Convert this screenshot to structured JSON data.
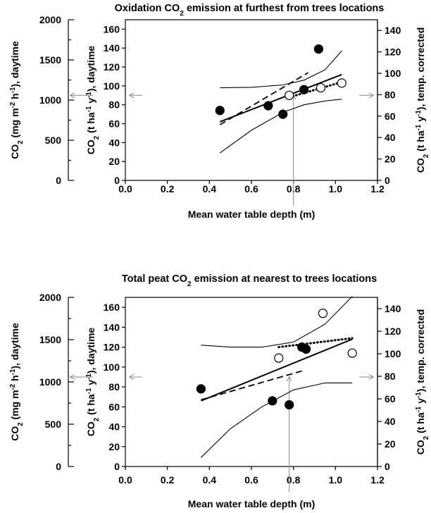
{
  "colors": {
    "marker_filled": "#000000",
    "marker_open": "#ffffff",
    "line": "#000000",
    "indicator": "#888888"
  },
  "chart_data": [
    {
      "type": "scatter",
      "title": "Oxidation CO₂ emission at furthest from trees locations",
      "xlabel": "Mean water table depth (m)",
      "ylabel": "CO₂ (t ha⁻¹ y⁻¹), daytime",
      "ylabel_left": "CO₂ (mg m⁻² h⁻¹), daytime",
      "ylabel_right": "CO₂ (t ha⁻¹ y⁻¹), temp. corrected",
      "xlim": [
        0,
        1.2
      ],
      "ylim": [
        0,
        170
      ],
      "ylim_left": [
        0,
        2000
      ],
      "ylim_right": [
        0,
        150
      ],
      "xticks": [
        "0.0",
        "0.2",
        "0.4",
        "0.6",
        "0.8",
        "1.0",
        "1.2"
      ],
      "yticks": [
        "0",
        "20",
        "40",
        "60",
        "80",
        "100",
        "120",
        "140",
        "160"
      ],
      "yticks_left": [
        "0",
        "500",
        "1000",
        "1500",
        "2000"
      ],
      "yticks_right": [
        "0",
        "20",
        "40",
        "60",
        "80",
        "100",
        "120",
        "140"
      ],
      "series": [
        {
          "marker": "filled-circle",
          "points": [
            [
              0.45,
              74
            ],
            [
              0.68,
              79
            ],
            [
              0.75,
              70
            ],
            [
              0.85,
              96
            ],
            [
              0.92,
              139
            ]
          ]
        },
        {
          "marker": "open-circle",
          "points": [
            [
              0.78,
              90
            ],
            [
              0.93,
              98
            ],
            [
              1.03,
              103
            ]
          ]
        }
      ],
      "lines": [
        {
          "style": "solid",
          "points": [
            [
              0.45,
              62
            ],
            [
              1.03,
              112
            ]
          ]
        },
        {
          "style": "dashed",
          "points": [
            [
              0.45,
              59
            ],
            [
              0.87,
              114
            ]
          ]
        },
        {
          "style": "dotted",
          "points": [
            [
              0.78,
              88
            ],
            [
              1.03,
              104
            ]
          ]
        },
        {
          "style": "thin",
          "points": [
            [
              0.45,
              98
            ],
            [
              0.6,
              98.5
            ],
            [
              0.75,
              101
            ],
            [
              0.85,
              106
            ],
            [
              0.95,
              117
            ],
            [
              1.03,
              137
            ]
          ]
        },
        {
          "style": "thin",
          "points": [
            [
              0.45,
              29
            ],
            [
              0.6,
              53
            ],
            [
              0.75,
              72
            ],
            [
              0.85,
              80
            ],
            [
              0.95,
              84
            ],
            [
              1.03,
              86
            ]
          ]
        }
      ],
      "indicator_x": 0.8
    },
    {
      "type": "scatter",
      "title": "Total peat CO₂ emission at nearest to trees locations",
      "xlabel": "Mean water table depth (m)",
      "ylabel": "CO₂ (t ha⁻¹ y⁻¹), daytime",
      "ylabel_left": "CO₂ (mg m⁻² h⁻¹), daytime",
      "ylabel_right": "CO₂ (t ha⁻¹ y⁻¹), temp. corrected",
      "xlim": [
        0,
        1.2
      ],
      "ylim": [
        0,
        170
      ],
      "ylim_left": [
        0,
        2000
      ],
      "ylim_right": [
        0,
        150
      ],
      "xticks": [
        "0.0",
        "0.2",
        "0.4",
        "0.6",
        "0.8",
        "1.0",
        "1.2"
      ],
      "yticks": [
        "0",
        "20",
        "40",
        "60",
        "80",
        "100",
        "120",
        "140",
        "160"
      ],
      "yticks_left": [
        "0",
        "500",
        "1000",
        "1500",
        "2000"
      ],
      "yticks_right": [
        "0",
        "20",
        "40",
        "60",
        "80",
        "100",
        "120",
        "140"
      ],
      "series": [
        {
          "marker": "filled-circle",
          "points": [
            [
              0.36,
              78
            ],
            [
              0.7,
              66
            ],
            [
              0.78,
              62
            ],
            [
              0.84,
              120
            ],
            [
              0.86,
              118
            ]
          ]
        },
        {
          "marker": "open-circle",
          "points": [
            [
              0.73,
              109
            ],
            [
              0.94,
              154
            ],
            [
              1.08,
              114
            ]
          ]
        }
      ],
      "lines": [
        {
          "style": "solid",
          "points": [
            [
              0.36,
              66
            ],
            [
              1.08,
              128
            ]
          ]
        },
        {
          "style": "dashed",
          "points": [
            [
              0.36,
              67
            ],
            [
              0.84,
              96
            ]
          ]
        },
        {
          "style": "dotted",
          "points": [
            [
              0.73,
              120
            ],
            [
              1.08,
              129
            ]
          ]
        },
        {
          "style": "thin",
          "points": [
            [
              0.36,
              122
            ],
            [
              0.5,
              120
            ],
            [
              0.65,
              120
            ],
            [
              0.8,
              125
            ],
            [
              0.95,
              143
            ],
            [
              1.08,
              171
            ]
          ]
        },
        {
          "style": "thin",
          "points": [
            [
              0.36,
              9
            ],
            [
              0.5,
              38
            ],
            [
              0.65,
              60
            ],
            [
              0.8,
              77
            ],
            [
              0.95,
              84
            ],
            [
              1.08,
              84
            ]
          ]
        }
      ],
      "indicator_x": 0.78
    }
  ]
}
